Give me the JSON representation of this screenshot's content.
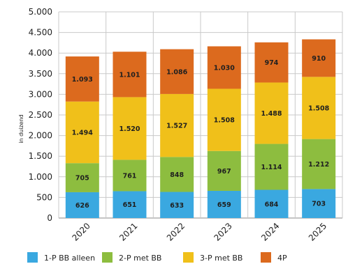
{
  "chart_data": {
    "type": "bar",
    "stacked": true,
    "categories": [
      "2020",
      "2021",
      "2022",
      "2023",
      "2024",
      "2025"
    ],
    "ylabel": "in duizend",
    "ylim": [
      0,
      5000
    ],
    "yticks": [
      0,
      500,
      1000,
      1500,
      2000,
      2500,
      3000,
      3500,
      4000,
      4500,
      5000
    ],
    "ytick_labels": [
      "0",
      "500",
      "1.000",
      "1.500",
      "2.000",
      "2.500",
      "3.000",
      "3.500",
      "4.000",
      "4.500",
      "5.000"
    ],
    "grid": true,
    "legend": "bottom",
    "series": [
      {
        "name": "1-P BB alleen",
        "color": "#3aa8e0",
        "values": [
          626,
          651,
          633,
          659,
          684,
          703
        ],
        "labels": [
          "626",
          "651",
          "633",
          "659",
          "684",
          "703"
        ]
      },
      {
        "name": "2-P met BB",
        "color": "#8dbd3f",
        "values": [
          705,
          761,
          848,
          967,
          1114,
          1212
        ],
        "labels": [
          "705",
          "761",
          "848",
          "967",
          "1.114",
          "1.212"
        ]
      },
      {
        "name": "3-P met BB",
        "color": "#f0c01a",
        "values": [
          1494,
          1520,
          1527,
          1508,
          1488,
          1508
        ],
        "labels": [
          "1.494",
          "1.520",
          "1.527",
          "1.508",
          "1.488",
          "1.508"
        ]
      },
      {
        "name": "4P",
        "color": "#dc6a1e",
        "values": [
          1093,
          1101,
          1086,
          1030,
          974,
          910
        ],
        "labels": [
          "1.093",
          "1.101",
          "1.086",
          "1.030",
          "974",
          "910"
        ]
      }
    ]
  }
}
